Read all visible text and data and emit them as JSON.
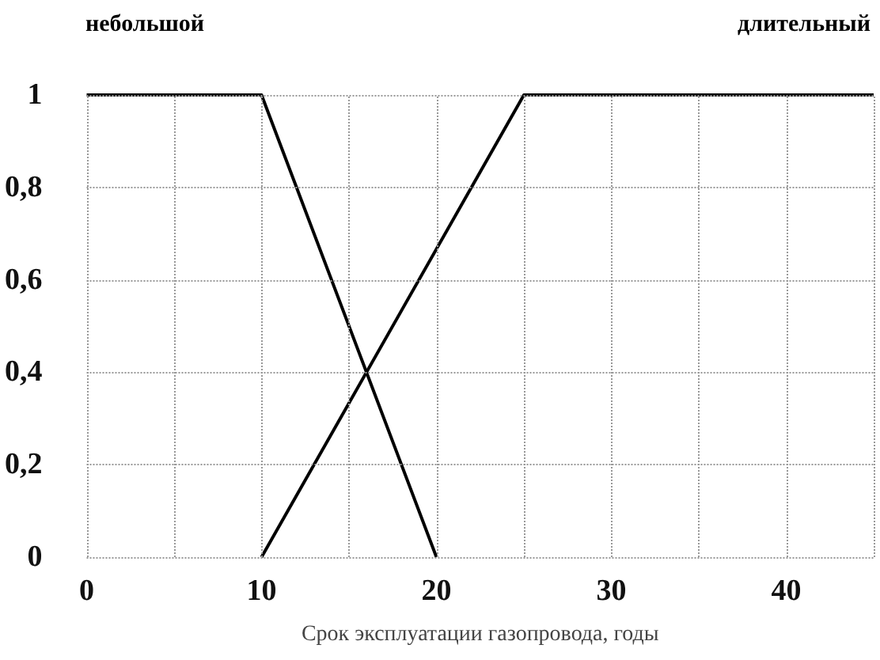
{
  "chart_data": {
    "type": "line",
    "xlabel": "Срок эксплуатации газопровода, годы",
    "series": [
      {
        "name": "небольшой",
        "color": "#000000",
        "x": [
          0,
          10,
          20
        ],
        "values": [
          1,
          1,
          0
        ]
      },
      {
        "name": "длительный",
        "color": "#000000",
        "x": [
          10,
          25,
          45
        ],
        "values": [
          0,
          1,
          1
        ]
      }
    ],
    "xlim": [
      0,
      45
    ],
    "xticks": [
      0,
      {
        "value": 5,
        "label": null
      },
      10,
      {
        "value": 15,
        "label": null
      },
      20,
      {
        "value": 25,
        "label": null
      },
      30,
      {
        "value": 35,
        "label": null
      },
      40,
      {
        "value": 45,
        "label": null
      }
    ],
    "ylim": [
      0,
      1
    ],
    "yticks": [
      0,
      {
        "value": 0.2,
        "label": "0,2"
      },
      {
        "value": 0.4,
        "label": "0,4"
      },
      {
        "value": 0.6,
        "label": "0,6"
      },
      {
        "value": 0.8,
        "label": "0,8"
      },
      1
    ],
    "grid": true,
    "marker": "none",
    "line_style": "solid"
  }
}
